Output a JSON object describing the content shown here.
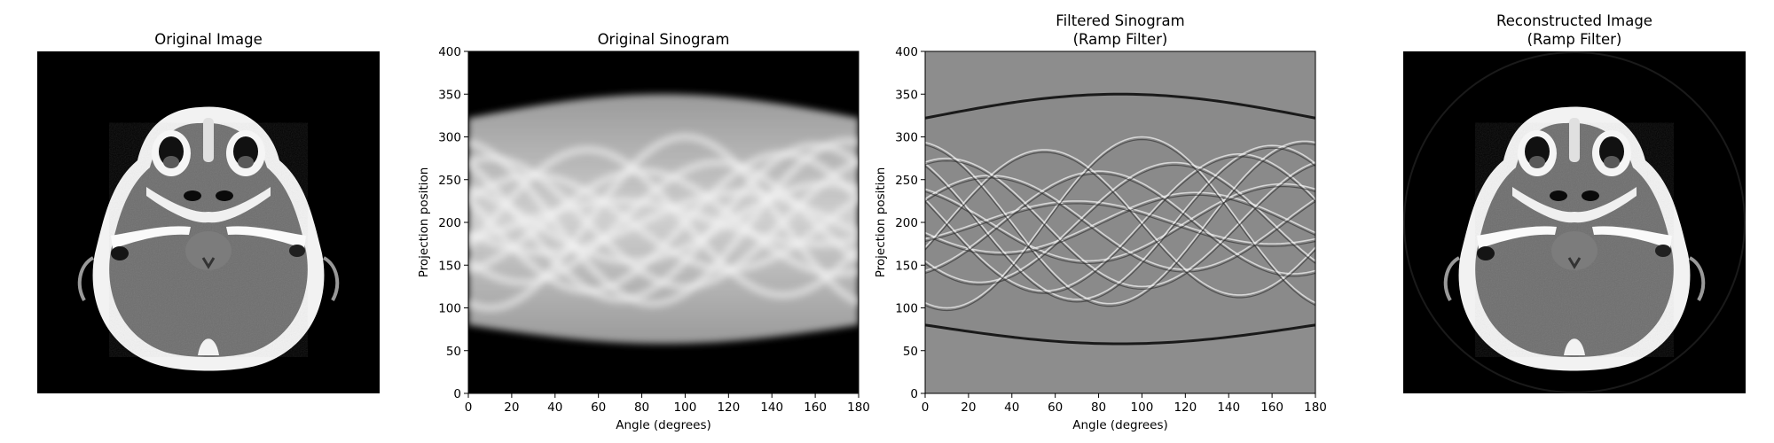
{
  "figure": {
    "background": "#ffffff",
    "colormap": "gray"
  },
  "chart_data": [
    {
      "type": "image",
      "id": "original",
      "title_lines": [
        "Original Image"
      ],
      "content": "axial head CT slice (grayscale)",
      "axes_visible": false
    },
    {
      "type": "heatmap",
      "id": "sinogram",
      "title_lines": [
        "Original Sinogram"
      ],
      "xlabel": "Angle (degrees)",
      "ylabel": "Projection position",
      "xlim": [
        0,
        180
      ],
      "ylim": [
        0,
        400
      ],
      "xticks": [
        0,
        20,
        40,
        60,
        80,
        100,
        120,
        140,
        160,
        180
      ],
      "yticks": [
        0,
        50,
        100,
        150,
        200,
        250,
        300,
        350,
        400
      ],
      "background_level": "black",
      "support_band": {
        "lower_at_0": 80,
        "lower_at_90": 58,
        "upper_at_0": 322,
        "upper_at_90": 350
      }
    },
    {
      "type": "heatmap",
      "id": "filtered",
      "title_lines": [
        "Filtered Sinogram",
        "(Ramp Filter)"
      ],
      "xlabel": "Angle (degrees)",
      "ylabel": "Projection position",
      "xlim": [
        0,
        180
      ],
      "ylim": [
        0,
        400
      ],
      "xticks": [
        0,
        20,
        40,
        60,
        80,
        100,
        120,
        140,
        160,
        180
      ],
      "yticks": [
        0,
        50,
        100,
        150,
        200,
        250,
        300,
        350,
        400
      ],
      "background_level": "mid-gray",
      "support_band": {
        "lower_at_0": 80,
        "lower_at_90": 58,
        "upper_at_0": 322,
        "upper_at_90": 350
      }
    },
    {
      "type": "image",
      "id": "reconstructed",
      "title_lines": [
        "Reconstructed Image",
        "(Ramp Filter)"
      ],
      "content": "filtered back-projection reconstruction of the head CT slice",
      "axes_visible": false
    }
  ]
}
